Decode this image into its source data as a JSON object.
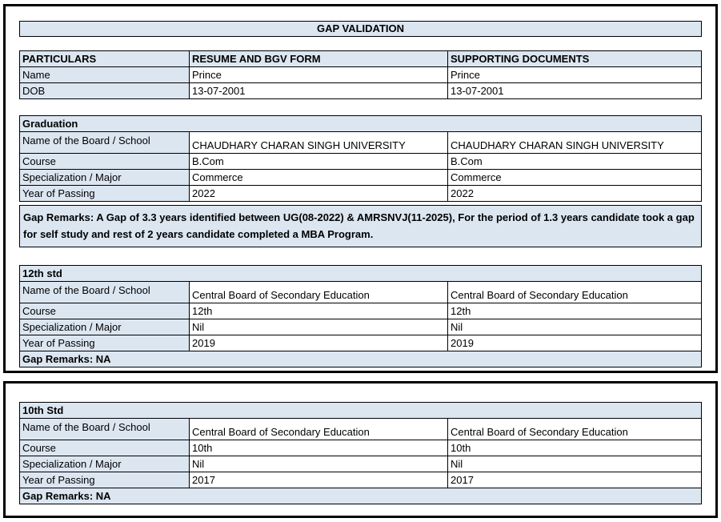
{
  "page": {
    "title": "GAP VALIDATION"
  },
  "colors": {
    "accent_bg": "#dce6f1",
    "border": "#000000",
    "page_bg": "#ffffff"
  },
  "comparison": {
    "headers": {
      "particulars": "PARTICULARS",
      "resume": "RESUME AND BGV FORM",
      "supporting": "SUPPORTING DOCUMENTS"
    },
    "rows": [
      {
        "label": "Name",
        "resume": "Prince",
        "supporting": "Prince"
      },
      {
        "label": "DOB",
        "resume": "13-07-2001",
        "supporting": "13-07-2001"
      }
    ]
  },
  "sections": [
    {
      "title": "Graduation",
      "rows": [
        {
          "label": "Name of the Board / School",
          "resume": "CHAUDHARY CHARAN SINGH UNIVERSITY",
          "supporting": "CHAUDHARY CHARAN SINGH UNIVERSITY"
        },
        {
          "label": "Course",
          "resume": "B.Com",
          "supporting": "B.Com"
        },
        {
          "label": "Specialization / Major",
          "resume": "Commerce",
          "supporting": "Commerce"
        },
        {
          "label": "Year of Passing",
          "resume": "2022",
          "supporting": "2022"
        }
      ],
      "gap_remarks": "Gap Remarks: A Gap of 3.3 years identified between UG(08-2022) & AMRSNVJ(11-2025), For the period of 1.3 years candidate took a gap for self study and rest of 2 years candidate completed a MBA Program."
    },
    {
      "title": "12th std",
      "rows": [
        {
          "label": "Name of the Board / School",
          "resume": "Central Board of Secondary Education",
          "supporting": "Central Board of Secondary Education"
        },
        {
          "label": "Course",
          "resume": "12th",
          "supporting": "12th"
        },
        {
          "label": "Specialization / Major",
          "resume": "Nil",
          "supporting": "Nil"
        },
        {
          "label": "Year of Passing",
          "resume": "2019",
          "supporting": "2019"
        }
      ],
      "gap_remarks": "Gap Remarks: NA"
    },
    {
      "title": "10th Std",
      "rows": [
        {
          "label": "Name of the Board / School",
          "resume": "Central Board of Secondary Education",
          "supporting": "Central Board of Secondary Education"
        },
        {
          "label": "Course",
          "resume": "10th",
          "supporting": "10th"
        },
        {
          "label": "Specialization / Major",
          "resume": "Nil",
          "supporting": "Nil"
        },
        {
          "label": "Year of Passing",
          "resume": "2017",
          "supporting": "2017"
        }
      ],
      "gap_remarks": "Gap Remarks: NA"
    }
  ]
}
